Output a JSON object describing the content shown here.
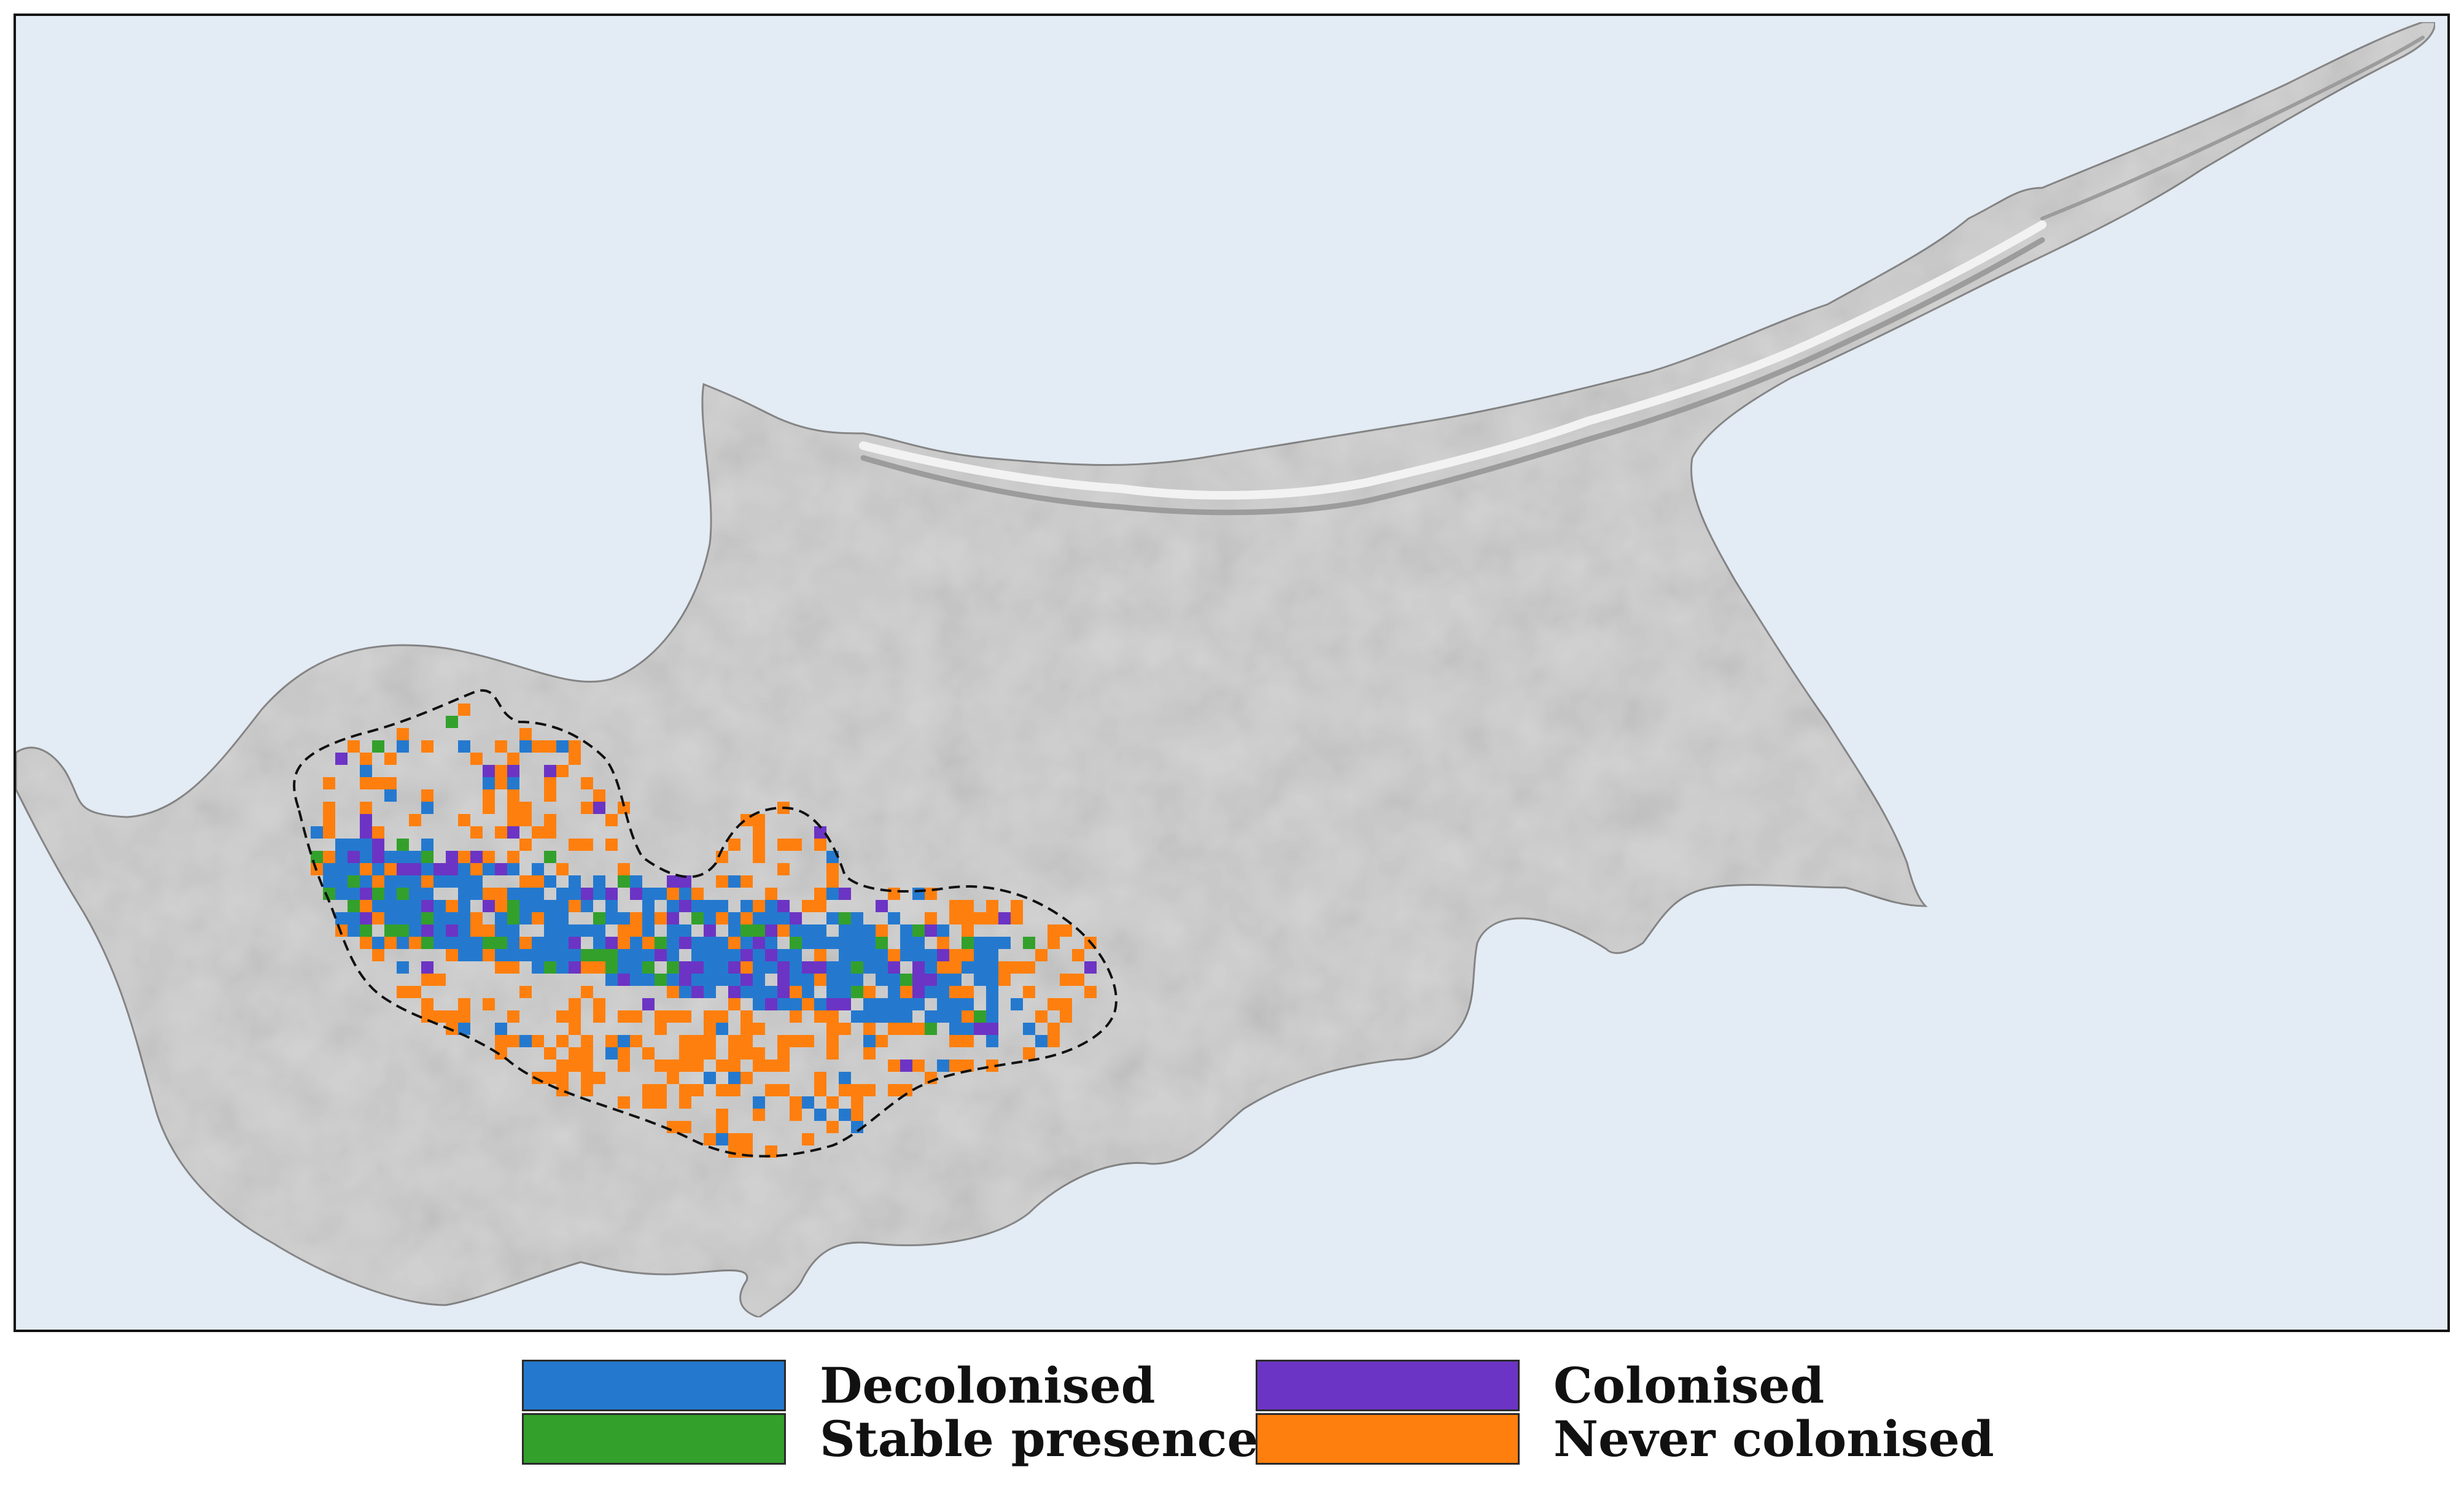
{
  "colors": {
    "sea": "#e3ebf4",
    "land": "#d3d3d3",
    "ridge_light": "#f2f2f2",
    "ridge_dark": "#9c9c9c",
    "boundary": "#111111"
  },
  "legend": {
    "items": [
      {
        "label": "Decolonised",
        "color": "#2479cf"
      },
      {
        "label": "Colonised",
        "color": "#6c34c4"
      },
      {
        "label": "Stable presence",
        "color": "#33a02c"
      },
      {
        "label": "Never colonised",
        "color": "#ff7f0e"
      }
    ]
  }
}
